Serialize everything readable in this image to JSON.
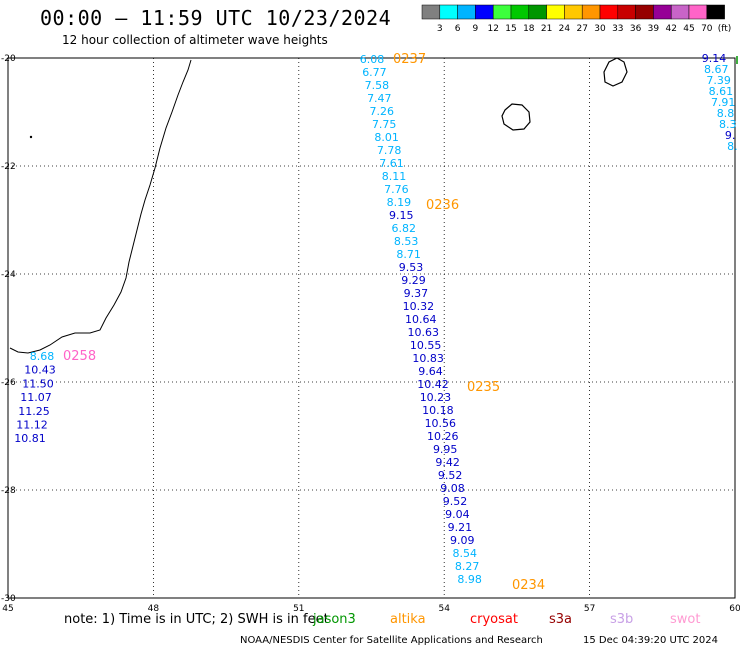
{
  "header": {
    "title": "00:00 – 11:59 UTC 10/23/2024",
    "subtitle": "12 hour collection of altimeter wave heights"
  },
  "scale": {
    "colors": [
      "#808080",
      "#00ffff",
      "#00b4ff",
      "#0000ff",
      "#3cff3c",
      "#00c800",
      "#009600",
      "#ffff00",
      "#ffc800",
      "#ff9600",
      "#ff0000",
      "#c80000",
      "#960000",
      "#960096",
      "#c864c8",
      "#ff64c8",
      "#000000"
    ],
    "labels": [
      "3",
      "6",
      "9",
      "12",
      "15",
      "18",
      "21",
      "24",
      "27",
      "30",
      "33",
      "36",
      "39",
      "42",
      "45",
      "70"
    ],
    "unit": "(ft)"
  },
  "axes": {
    "lon_ticks": [
      "45",
      "48",
      "51",
      "54",
      "57",
      "60"
    ],
    "lat_ticks": [
      "-20",
      "-22",
      "-24",
      "-26",
      "-28",
      "-30"
    ]
  },
  "passes": [
    {
      "time": "0237",
      "color": "#ff9600"
    },
    {
      "time": "0236",
      "color": "#ff9600"
    },
    {
      "time": "0235",
      "color": "#ff9600"
    },
    {
      "time": "0234",
      "color": "#ff9600"
    },
    {
      "time": "0258",
      "color": "#ff64c8"
    }
  ],
  "track_main": [
    {
      "v": "6.08",
      "c": "#00b4ff"
    },
    {
      "v": "6.77",
      "c": "#00b4ff"
    },
    {
      "v": "7.58",
      "c": "#00b4ff"
    },
    {
      "v": "7.47",
      "c": "#00b4ff"
    },
    {
      "v": "7.26",
      "c": "#00b4ff"
    },
    {
      "v": "7.75",
      "c": "#00b4ff"
    },
    {
      "v": "8.01",
      "c": "#00b4ff"
    },
    {
      "v": "7.78",
      "c": "#00b4ff"
    },
    {
      "v": "7.61",
      "c": "#00b4ff"
    },
    {
      "v": "8.11",
      "c": "#00b4ff"
    },
    {
      "v": "7.76",
      "c": "#00b4ff"
    },
    {
      "v": "8.19",
      "c": "#00b4ff"
    },
    {
      "v": "9.15",
      "c": "#0000c8"
    },
    {
      "v": "6.82",
      "c": "#00b4ff"
    },
    {
      "v": "8.53",
      "c": "#00b4ff"
    },
    {
      "v": "8.71",
      "c": "#00b4ff"
    },
    {
      "v": "9.53",
      "c": "#0000c8"
    },
    {
      "v": "9.29",
      "c": "#0000c8"
    },
    {
      "v": "9.37",
      "c": "#0000c8"
    },
    {
      "v": "10.32",
      "c": "#0000c8"
    },
    {
      "v": "10.64",
      "c": "#0000c8"
    },
    {
      "v": "10.63",
      "c": "#0000c8"
    },
    {
      "v": "10.55",
      "c": "#0000c8"
    },
    {
      "v": "10.83",
      "c": "#0000c8"
    },
    {
      "v": "9.64",
      "c": "#0000c8"
    },
    {
      "v": "10.42",
      "c": "#0000c8"
    },
    {
      "v": "10.23",
      "c": "#0000c8"
    },
    {
      "v": "10.18",
      "c": "#0000c8"
    },
    {
      "v": "10.56",
      "c": "#0000c8"
    },
    {
      "v": "10.26",
      "c": "#0000c8"
    },
    {
      "v": "9.95",
      "c": "#0000c8"
    },
    {
      "v": "9.42",
      "c": "#0000c8"
    },
    {
      "v": "9.52",
      "c": "#0000c8"
    },
    {
      "v": "9.08",
      "c": "#0000c8"
    },
    {
      "v": "9.52",
      "c": "#0000c8"
    },
    {
      "v": "9.04",
      "c": "#0000c8"
    },
    {
      "v": "9.21",
      "c": "#0000c8"
    },
    {
      "v": "9.09",
      "c": "#0000c8"
    },
    {
      "v": "8.54",
      "c": "#00b4ff"
    },
    {
      "v": "8.27",
      "c": "#00b4ff"
    },
    {
      "v": "8.98",
      "c": "#00b4ff"
    }
  ],
  "track_west": [
    {
      "v": "8.68",
      "c": "#00b4ff"
    },
    {
      "v": "10.43",
      "c": "#0000c8"
    },
    {
      "v": "11.50",
      "c": "#0000c8"
    },
    {
      "v": "11.07",
      "c": "#0000c8"
    },
    {
      "v": "11.25",
      "c": "#0000c8"
    },
    {
      "v": "11.12",
      "c": "#0000c8"
    },
    {
      "v": "10.81",
      "c": "#0000c8"
    }
  ],
  "track_east": [
    {
      "v": "9.14",
      "c": "#0000c8"
    },
    {
      "v": "8.67",
      "c": "#00b4ff"
    },
    {
      "v": "7.39",
      "c": "#00b4ff"
    },
    {
      "v": "8.61",
      "c": "#00b4ff"
    },
    {
      "v": "7.91",
      "c": "#00b4ff"
    },
    {
      "v": "8.8",
      "c": "#00b4ff"
    },
    {
      "v": "8.3",
      "c": "#00b4ff"
    },
    {
      "v": "9.",
      "c": "#0000c8"
    },
    {
      "v": "8.",
      "c": "#00b4ff"
    }
  ],
  "footer": {
    "note": "note:  1) Time is in UTC;  2) SWH is in feet",
    "sats": [
      {
        "name": "jason3",
        "color": "#009600"
      },
      {
        "name": "altika",
        "color": "#ff9600"
      },
      {
        "name": "cryosat",
        "color": "#ff0000"
      },
      {
        "name": "s3a",
        "color": "#960000"
      },
      {
        "name": "s3b",
        "color": "#c8a0e6"
      },
      {
        "name": "swot",
        "color": "#ff9ad2"
      }
    ],
    "credit": "NOAA/NESDIS Center for Satellite Applications and Research",
    "timestamp": "15 Dec 04:39:20 UTC 2024"
  }
}
